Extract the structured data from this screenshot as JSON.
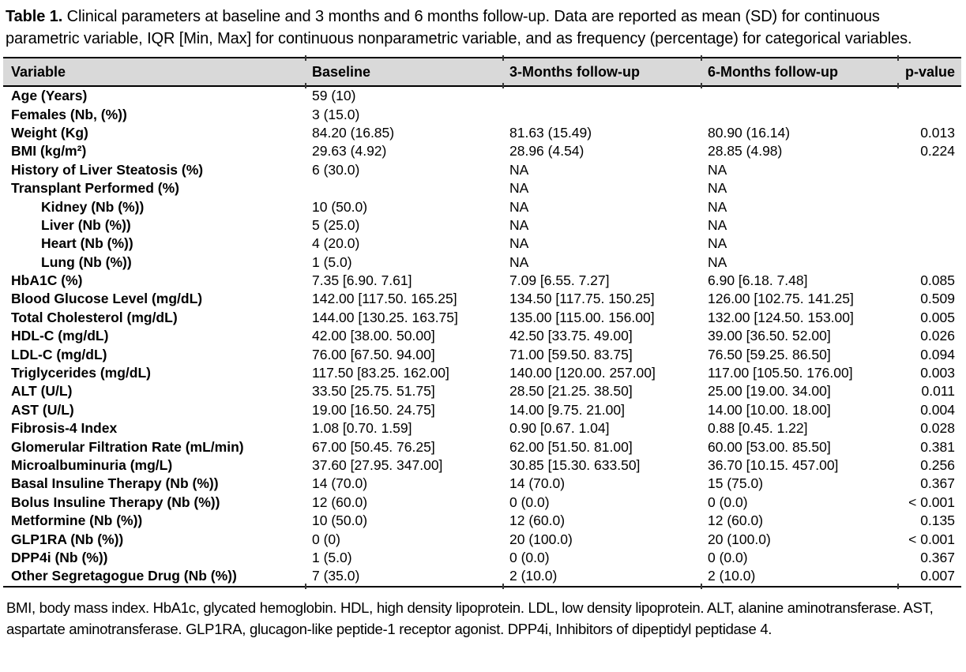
{
  "caption": {
    "label": "Table 1.",
    "text": " Clinical parameters at baseline and 3 months and 6 months follow-up. Data are reported as mean (SD) for continuous parametric variable, IQR [Min, Max] for continuous nonparametric variable, and as frequency (percentage) for categorical variables."
  },
  "table": {
    "columns": [
      "Variable",
      "Baseline",
      "3-Months follow-up",
      "6-Months follow-up",
      "p-value"
    ],
    "header_bg": "#d9d9d9",
    "border_color": "#000000",
    "rows": [
      {
        "label": "Age (Years)",
        "indent": false,
        "values": [
          "59 (10)",
          "",
          "",
          ""
        ]
      },
      {
        "label": "Females (Nb, (%))",
        "indent": false,
        "values": [
          "3 (15.0)",
          "",
          "",
          ""
        ]
      },
      {
        "label": "Weight (Kg)",
        "indent": false,
        "values": [
          "84.20 (16.85)",
          "81.63 (15.49)",
          "80.90 (16.14)",
          "0.013"
        ]
      },
      {
        "label": "BMI (kg/m²)",
        "indent": false,
        "values": [
          "29.63 (4.92)",
          "28.96 (4.54)",
          "28.85 (4.98)",
          "0.224"
        ]
      },
      {
        "label": "History of Liver Steatosis (%)",
        "indent": false,
        "values": [
          "6 (30.0)",
          "NA",
          "NA",
          ""
        ]
      },
      {
        "label": "Transplant Performed (%)",
        "indent": false,
        "values": [
          "",
          "NA",
          "NA",
          ""
        ]
      },
      {
        "label": "Kidney (Nb (%))",
        "indent": true,
        "values": [
          "10 (50.0)",
          "NA",
          "NA",
          ""
        ]
      },
      {
        "label": "Liver (Nb (%))",
        "indent": true,
        "values": [
          "5 (25.0)",
          "NA",
          "NA",
          ""
        ]
      },
      {
        "label": "Heart (Nb (%))",
        "indent": true,
        "values": [
          "4 (20.0)",
          "NA",
          "NA",
          ""
        ]
      },
      {
        "label": "Lung (Nb (%))",
        "indent": true,
        "values": [
          "1 (5.0)",
          "NA",
          "NA",
          ""
        ]
      },
      {
        "label": "HbA1C (%)",
        "indent": false,
        "values": [
          "7.35 [6.90. 7.61]",
          "7.09 [6.55. 7.27]",
          "6.90 [6.18. 7.48]",
          "0.085"
        ]
      },
      {
        "label": "Blood Glucose Level (mg/dL)",
        "indent": false,
        "values": [
          "142.00 [117.50. 165.25]",
          "134.50 [117.75. 150.25]",
          "126.00 [102.75. 141.25]",
          "0.509"
        ]
      },
      {
        "label": "Total Cholesterol (mg/dL)",
        "indent": false,
        "values": [
          "144.00 [130.25. 163.75]",
          "135.00 [115.00. 156.00]",
          "132.00 [124.50. 153.00]",
          "0.005"
        ]
      },
      {
        "label": "HDL-C (mg/dL)",
        "indent": false,
        "values": [
          "42.00 [38.00. 50.00]",
          "42.50 [33.75. 49.00]",
          "39.00 [36.50. 52.00]",
          "0.026"
        ]
      },
      {
        "label": "LDL-C (mg/dL)",
        "indent": false,
        "values": [
          "76.00 [67.50. 94.00]",
          "71.00 [59.50. 83.75]",
          "76.50 [59.25. 86.50]",
          "0.094"
        ]
      },
      {
        "label": "Triglycerides (mg/dL)",
        "indent": false,
        "values": [
          "117.50 [83.25. 162.00]",
          "140.00 [120.00. 257.00]",
          "117.00 [105.50. 176.00]",
          "0.003"
        ]
      },
      {
        "label": "ALT (U/L)",
        "indent": false,
        "values": [
          "33.50 [25.75. 51.75]",
          "28.50 [21.25. 38.50]",
          "25.00 [19.00. 34.00]",
          "0.011"
        ]
      },
      {
        "label": "AST (U/L)",
        "indent": false,
        "values": [
          "19.00 [16.50. 24.75]",
          "14.00 [9.75. 21.00]",
          "14.00 [10.00. 18.00]",
          "0.004"
        ]
      },
      {
        "label": "Fibrosis-4 Index",
        "indent": false,
        "values": [
          "1.08 [0.70. 1.59]",
          "0.90 [0.67. 1.04]",
          "0.88 [0.45. 1.22]",
          "0.028"
        ]
      },
      {
        "label": "Glomerular Filtration Rate (mL/min)",
        "indent": false,
        "values": [
          "67.00 [50.45. 76.25]",
          "62.00 [51.50. 81.00]",
          "60.00 [53.00. 85.50]",
          "0.381"
        ]
      },
      {
        "label": "Microalbuminuria (mg/L)",
        "indent": false,
        "values": [
          "37.60 [27.95. 347.00]",
          "30.85 [15.30. 633.50]",
          "36.70 [10.15. 457.00]",
          "0.256"
        ]
      },
      {
        "label": "Basal Insuline Therapy (Nb (%))",
        "indent": false,
        "values": [
          "14 (70.0)",
          "14 (70.0)",
          "15 (75.0)",
          "0.367"
        ]
      },
      {
        "label": "Bolus Insuline Therapy (Nb (%))",
        "indent": false,
        "values": [
          "12 (60.0)",
          "0 (0.0)",
          "0 (0.0)",
          "< 0.001"
        ]
      },
      {
        "label": "Metformine (Nb (%))",
        "indent": false,
        "values": [
          "10 (50.0)",
          "12 (60.0)",
          "12 (60.0)",
          "0.135"
        ]
      },
      {
        "label": "GLP1RA (Nb (%))",
        "indent": false,
        "values": [
          "0 (0)",
          "20 (100.0)",
          "20 (100.0)",
          "< 0.001"
        ]
      },
      {
        "label": "DPP4i (Nb (%))",
        "indent": false,
        "values": [
          "1 (5.0)",
          "0 (0.0)",
          "0 (0.0)",
          "0.367"
        ]
      },
      {
        "label": "Other Segretagogue Drug (Nb (%))",
        "indent": false,
        "values": [
          "7 (35.0)",
          "2 (10.0)",
          "2 (10.0)",
          "0.007"
        ]
      }
    ]
  },
  "footnote": "BMI, body mass index. HbA1c, glycated hemoglobin. HDL, high density lipoprotein. LDL, low density lipoprotein. ALT, alanine aminotransferase. AST, aspartate aminotransferase. GLP1RA, glucagon-like peptide-1 receptor agonist. DPP4i, Inhibitors of dipeptidyl peptidase 4."
}
